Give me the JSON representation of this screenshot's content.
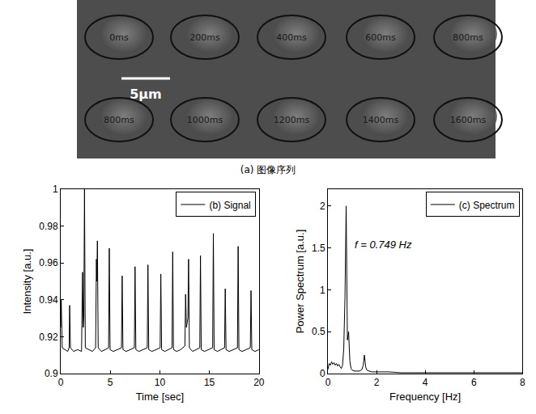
{
  "image_panel": {
    "labels": [
      "0ms",
      "200ms",
      "400ms",
      "600ms",
      "800ms",
      "800ms",
      "1000ms",
      "1200ms",
      "1400ms",
      "1600ms"
    ],
    "scale_bar": "5μm",
    "caption": "(a) 图像序列"
  },
  "chart_data": [
    {
      "type": "line",
      "x_label": "Time [sec]",
      "y_label": "Intensity [a.u.]",
      "xlim": [
        0,
        20
      ],
      "xticks": [
        0,
        5,
        10,
        15,
        20
      ],
      "ylim": [
        0.9,
        1
      ],
      "yticks": [
        0.9,
        0.92,
        0.94,
        0.96,
        0.98,
        1
      ],
      "grid": false,
      "legend": "upper right",
      "series": [
        {
          "name": "(b) Signal",
          "color": "#000000",
          "x": [
            0,
            0.05,
            0.15,
            0.4,
            0.7,
            0.85,
            0.9,
            0.98,
            1.3,
            1.7,
            2.1,
            2.2,
            2.27,
            2.33,
            2.4,
            2.48,
            2.8,
            3.2,
            3.52,
            3.6,
            3.65,
            3.7,
            3.78,
            4.1,
            4.5,
            4.83,
            4.9,
            4.98,
            5.3,
            5.7,
            6.13,
            6.2,
            6.28,
            6.6,
            7.0,
            7.43,
            7.5,
            7.58,
            7.9,
            8.3,
            8.73,
            8.8,
            8.88,
            9.2,
            9.6,
            10.03,
            10.1,
            10.18,
            10.5,
            10.9,
            11.23,
            11.3,
            11.38,
            11.7,
            12.1,
            12.53,
            12.6,
            12.68,
            12.83,
            12.9,
            12.98,
            13.3,
            13.7,
            14.03,
            14.1,
            14.18,
            14.5,
            14.9,
            15.33,
            15.4,
            15.48,
            15.8,
            16.2,
            16.53,
            16.6,
            16.68,
            17.0,
            17.4,
            17.83,
            17.9,
            17.98,
            18.3,
            18.7,
            19.13,
            19.2,
            19.28,
            19.6,
            20
          ],
          "values": [
            0.925,
            0.94,
            0.914,
            0.913,
            0.912,
            0.914,
            0.937,
            0.914,
            0.912,
            0.913,
            0.912,
            0.955,
            0.925,
            0.93,
            1.0,
            0.914,
            0.913,
            0.912,
            0.914,
            0.962,
            0.95,
            0.972,
            0.914,
            0.912,
            0.913,
            0.914,
            0.968,
            0.913,
            0.912,
            0.913,
            0.914,
            0.953,
            0.913,
            0.912,
            0.913,
            0.914,
            0.958,
            0.913,
            0.912,
            0.913,
            0.914,
            0.959,
            0.913,
            0.912,
            0.913,
            0.914,
            0.954,
            0.913,
            0.912,
            0.913,
            0.914,
            0.966,
            0.913,
            0.912,
            0.913,
            0.915,
            0.943,
            0.925,
            0.93,
            0.962,
            0.914,
            0.912,
            0.913,
            0.914,
            0.964,
            0.913,
            0.912,
            0.913,
            0.914,
            0.976,
            0.913,
            0.912,
            0.913,
            0.914,
            0.946,
            0.913,
            0.912,
            0.913,
            0.914,
            0.969,
            0.913,
            0.912,
            0.913,
            0.914,
            0.945,
            0.913,
            0.912,
            0.913
          ]
        }
      ]
    },
    {
      "type": "line",
      "x_label": "Frequency [Hz]",
      "y_label": "Power Spectrum [a.u.]",
      "xlim": [
        0,
        8
      ],
      "xticks": [
        0,
        2,
        4,
        6,
        8
      ],
      "ylim": [
        0,
        2.2
      ],
      "yticks": [
        0,
        0.5,
        1,
        1.5,
        2
      ],
      "grid": false,
      "legend": "upper right",
      "annotations": [
        "f = 0.749 Hz"
      ],
      "series": [
        {
          "name": "(c) Spectrum",
          "color": "#000000",
          "x": [
            0,
            0.05,
            0.1,
            0.15,
            0.2,
            0.25,
            0.3,
            0.35,
            0.4,
            0.45,
            0.5,
            0.55,
            0.6,
            0.65,
            0.7,
            0.749,
            0.8,
            0.85,
            0.9,
            0.95,
            1.0,
            1.1,
            1.2,
            1.3,
            1.4,
            1.45,
            1.5,
            1.55,
            1.6,
            1.7,
            1.8,
            2.0,
            2.5,
            3,
            4,
            5,
            6,
            7,
            8
          ],
          "values": [
            0.05,
            0.12,
            0.1,
            0.14,
            0.11,
            0.13,
            0.1,
            0.12,
            0.09,
            0.11,
            0.08,
            0.06,
            0.1,
            0.3,
            0.9,
            2.0,
            0.4,
            0.5,
            0.15,
            0.06,
            0.04,
            0.03,
            0.03,
            0.03,
            0.05,
            0.1,
            0.22,
            0.08,
            0.04,
            0.03,
            0.02,
            0.02,
            0.02,
            0.01,
            0.01,
            0.01,
            0.01,
            0.01,
            0.01
          ]
        }
      ]
    }
  ]
}
